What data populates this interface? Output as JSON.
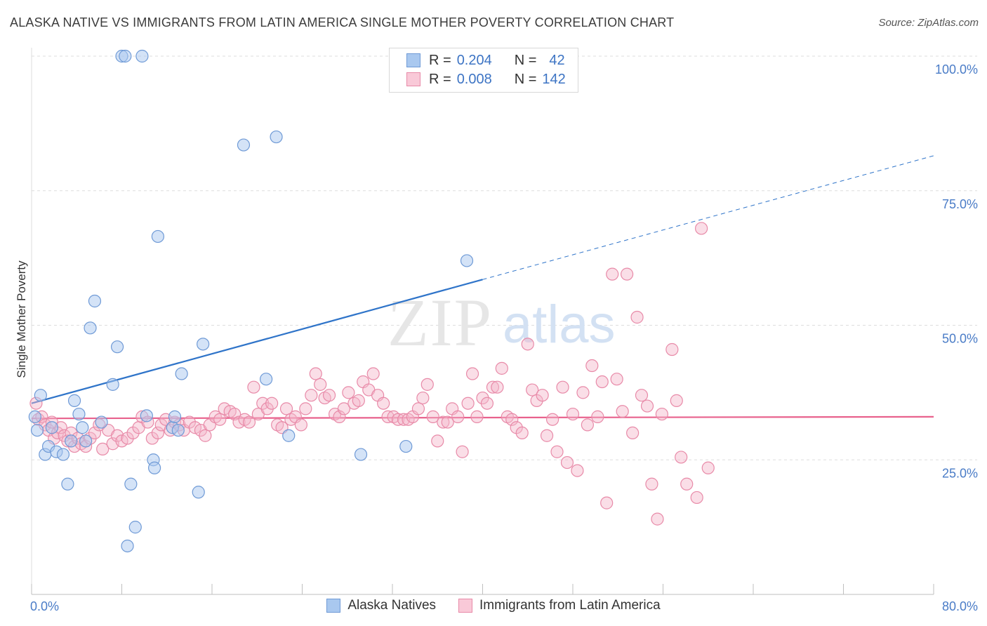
{
  "title": "ALASKA NATIVE VS IMMIGRANTS FROM LATIN AMERICA SINGLE MOTHER POVERTY CORRELATION CHART",
  "source": "Source: ZipAtlas.com",
  "watermark": {
    "zip": "ZIP",
    "atlas": "atlas"
  },
  "colors": {
    "blue_fill": "#a9c8ef",
    "blue_stroke": "#6f9ad6",
    "blue_line": "#2f74c9",
    "pink_fill": "#f4b6ca",
    "pink_stroke": "#e88aa8",
    "pink_line": "#e8628d",
    "axis_tick": "#4a7cc7"
  },
  "legend": {
    "rows": [
      {
        "r_label": "R =",
        "r_value": "0.204",
        "n_label": "N =",
        "n_value": "42"
      },
      {
        "r_label": "R =",
        "r_value": "0.008",
        "n_label": "N =",
        "n_value": "142"
      }
    ]
  },
  "chart_data": {
    "type": "scatter",
    "title": "ALASKA NATIVE VS IMMIGRANTS FROM LATIN AMERICA SINGLE MOTHER POVERTY CORRELATION CHART",
    "xlabel": "",
    "ylabel": "Single Mother Poverty",
    "xlim": [
      0,
      80
    ],
    "ylim": [
      0,
      105
    ],
    "x_tick_labels": [
      "0.0%",
      "80.0%"
    ],
    "y_ticks": [
      25,
      50,
      75,
      100
    ],
    "y_tick_labels": [
      "25.0%",
      "50.0%",
      "75.0%",
      "100.0%"
    ],
    "grid": true,
    "legend_position": "top-center",
    "series": [
      {
        "name": "Alaska Natives",
        "trend": {
          "x0": 0,
          "y0": 35.5,
          "x1": 40,
          "y1": 58.5,
          "dashed_to_x": 80,
          "dashed_to_y": 81.5
        },
        "points": [
          [
            0.3,
            33.0
          ],
          [
            0.5,
            30.5
          ],
          [
            0.8,
            37.0
          ],
          [
            1.2,
            26.0
          ],
          [
            1.5,
            27.5
          ],
          [
            1.8,
            31.0
          ],
          [
            2.2,
            26.5
          ],
          [
            2.8,
            26.0
          ],
          [
            3.2,
            20.5
          ],
          [
            3.5,
            28.5
          ],
          [
            3.8,
            36.0
          ],
          [
            4.2,
            33.5
          ],
          [
            4.5,
            31.0
          ],
          [
            4.8,
            28.5
          ],
          [
            5.2,
            49.5
          ],
          [
            5.6,
            54.5
          ],
          [
            6.2,
            32.0
          ],
          [
            7.2,
            39.0
          ],
          [
            7.6,
            46.0
          ],
          [
            8.5,
            9.0
          ],
          [
            8.8,
            20.5
          ],
          [
            9.2,
            12.5
          ],
          [
            8.0,
            100
          ],
          [
            8.3,
            100
          ],
          [
            9.8,
            100
          ],
          [
            10.8,
            25.0
          ],
          [
            10.9,
            23.5
          ],
          [
            11.2,
            66.5
          ],
          [
            12.5,
            31.0
          ],
          [
            12.7,
            33.0
          ],
          [
            13.0,
            30.5
          ],
          [
            13.3,
            41.0
          ],
          [
            14.8,
            19.0
          ],
          [
            15.2,
            46.5
          ],
          [
            18.8,
            83.5
          ],
          [
            20.8,
            40.0
          ],
          [
            21.7,
            85.0
          ],
          [
            22.8,
            29.5
          ],
          [
            29.2,
            26.0
          ],
          [
            33.2,
            27.5
          ],
          [
            38.6,
            62.0
          ],
          [
            10.2,
            33.2
          ]
        ]
      },
      {
        "name": "Immigrants from Latin America",
        "trend": {
          "x0": 0,
          "y0": 32.7,
          "x1": 80,
          "y1": 33.0
        },
        "points": [
          [
            0.4,
            35.5
          ],
          [
            0.6,
            32.5
          ],
          [
            0.9,
            33.0
          ],
          [
            1.2,
            31.5
          ],
          [
            1.5,
            30.5
          ],
          [
            1.8,
            32.0
          ],
          [
            2.0,
            29.0
          ],
          [
            2.3,
            30.0
          ],
          [
            2.6,
            31.0
          ],
          [
            2.9,
            29.5
          ],
          [
            3.2,
            28.5
          ],
          [
            3.5,
            30.0
          ],
          [
            3.8,
            27.5
          ],
          [
            4.1,
            29.0
          ],
          [
            4.4,
            28.0
          ],
          [
            4.8,
            27.5
          ],
          [
            5.2,
            29.0
          ],
          [
            5.6,
            30.0
          ],
          [
            6.0,
            31.5
          ],
          [
            6.3,
            27.0
          ],
          [
            6.8,
            30.5
          ],
          [
            7.2,
            28.0
          ],
          [
            7.6,
            29.5
          ],
          [
            8.0,
            28.5
          ],
          [
            8.5,
            29.0
          ],
          [
            9.0,
            30.0
          ],
          [
            9.5,
            31.0
          ],
          [
            9.8,
            33.0
          ],
          [
            10.3,
            32.0
          ],
          [
            10.7,
            29.0
          ],
          [
            11.2,
            30.0
          ],
          [
            11.5,
            31.5
          ],
          [
            11.9,
            32.5
          ],
          [
            12.3,
            30.5
          ],
          [
            12.7,
            32.0
          ],
          [
            13.1,
            31.5
          ],
          [
            13.5,
            30.5
          ],
          [
            14.0,
            32.0
          ],
          [
            14.5,
            31.0
          ],
          [
            15.0,
            30.5
          ],
          [
            15.4,
            29.5
          ],
          [
            15.8,
            31.5
          ],
          [
            16.3,
            33.0
          ],
          [
            16.7,
            32.5
          ],
          [
            17.1,
            34.5
          ],
          [
            17.6,
            34.0
          ],
          [
            18.0,
            33.5
          ],
          [
            18.4,
            32.0
          ],
          [
            18.9,
            32.5
          ],
          [
            19.3,
            32.0
          ],
          [
            19.7,
            38.5
          ],
          [
            20.1,
            33.5
          ],
          [
            20.5,
            35.5
          ],
          [
            20.9,
            34.5
          ],
          [
            21.3,
            35.5
          ],
          [
            21.8,
            31.5
          ],
          [
            22.2,
            31.0
          ],
          [
            22.6,
            34.5
          ],
          [
            23.0,
            32.5
          ],
          [
            23.4,
            33.0
          ],
          [
            23.9,
            31.5
          ],
          [
            24.3,
            34.5
          ],
          [
            24.8,
            37.0
          ],
          [
            25.2,
            41.0
          ],
          [
            25.6,
            39.0
          ],
          [
            26.0,
            36.5
          ],
          [
            26.4,
            37.0
          ],
          [
            26.9,
            33.5
          ],
          [
            27.3,
            33.0
          ],
          [
            27.7,
            34.5
          ],
          [
            28.1,
            37.5
          ],
          [
            28.6,
            35.5
          ],
          [
            29.0,
            36.0
          ],
          [
            29.4,
            39.5
          ],
          [
            29.9,
            38.0
          ],
          [
            30.3,
            41.0
          ],
          [
            30.7,
            37.0
          ],
          [
            31.2,
            35.5
          ],
          [
            31.6,
            33.0
          ],
          [
            32.1,
            33.0
          ],
          [
            32.5,
            32.5
          ],
          [
            33.0,
            32.5
          ],
          [
            33.4,
            32.5
          ],
          [
            33.8,
            33.0
          ],
          [
            34.3,
            34.5
          ],
          [
            34.7,
            36.5
          ],
          [
            35.1,
            39.0
          ],
          [
            35.6,
            33.0
          ],
          [
            36.0,
            28.5
          ],
          [
            36.5,
            32.0
          ],
          [
            36.9,
            32.0
          ],
          [
            37.3,
            34.5
          ],
          [
            37.8,
            33.0
          ],
          [
            38.2,
            26.5
          ],
          [
            38.7,
            35.5
          ],
          [
            39.1,
            41.0
          ],
          [
            39.5,
            33.0
          ],
          [
            40.0,
            36.5
          ],
          [
            40.4,
            35.5
          ],
          [
            40.9,
            38.5
          ],
          [
            41.3,
            38.5
          ],
          [
            41.7,
            42.0
          ],
          [
            42.2,
            33.0
          ],
          [
            42.6,
            32.5
          ],
          [
            43.0,
            31.0
          ],
          [
            43.5,
            30.0
          ],
          [
            44.0,
            46.5
          ],
          [
            44.4,
            38.0
          ],
          [
            44.8,
            36.0
          ],
          [
            45.3,
            37.0
          ],
          [
            45.7,
            29.5
          ],
          [
            46.2,
            32.5
          ],
          [
            46.6,
            26.5
          ],
          [
            47.1,
            38.5
          ],
          [
            47.5,
            24.5
          ],
          [
            48.0,
            33.5
          ],
          [
            48.4,
            23.0
          ],
          [
            48.9,
            37.5
          ],
          [
            49.3,
            31.5
          ],
          [
            49.7,
            42.5
          ],
          [
            50.2,
            33.0
          ],
          [
            50.6,
            39.5
          ],
          [
            51.0,
            17.0
          ],
          [
            51.5,
            59.5
          ],
          [
            51.9,
            40.0
          ],
          [
            52.4,
            34.0
          ],
          [
            52.8,
            59.5
          ],
          [
            53.3,
            30.0
          ],
          [
            53.7,
            51.5
          ],
          [
            54.1,
            37.0
          ],
          [
            54.6,
            35.0
          ],
          [
            55.0,
            20.5
          ],
          [
            55.5,
            14.0
          ],
          [
            55.9,
            33.5
          ],
          [
            56.8,
            45.5
          ],
          [
            57.2,
            36.0
          ],
          [
            57.6,
            25.5
          ],
          [
            58.1,
            20.5
          ],
          [
            59.0,
            18.0
          ],
          [
            59.4,
            68.0
          ],
          [
            60.0,
            23.5
          ]
        ]
      }
    ]
  }
}
